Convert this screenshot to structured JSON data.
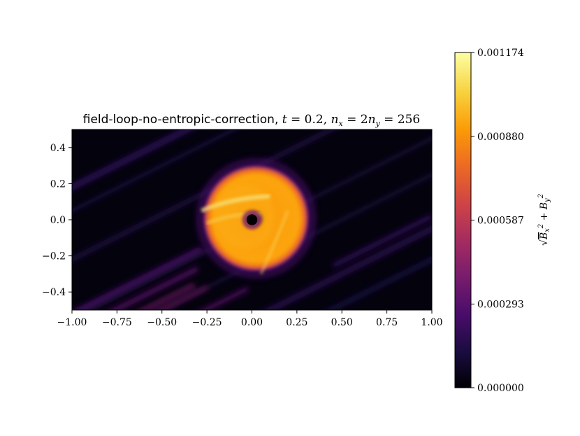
{
  "chart_data": {
    "type": "heatmap",
    "title": "field-loop-no-entropic-correction, t = 0.2, n_x = 2n_y = 256",
    "title_parts": {
      "name": "field-loop-no-entropic-correction,",
      "t_var": "t",
      "t_eq": " = 0.2,",
      "n_var": "n",
      "n_sub": "x",
      "eq_mid": " = 2",
      "n2_var": "n",
      "n2_sub": "y",
      "n_eq": " = 256"
    },
    "xlim": [
      -1.0,
      1.0
    ],
    "ylim": [
      -0.5,
      0.5
    ],
    "x_ticks": [
      -1.0,
      -0.75,
      -0.5,
      -0.25,
      0.0,
      0.25,
      0.5,
      0.75,
      1.0
    ],
    "x_tick_labels": [
      "−1.00",
      "−0.75",
      "−0.50",
      "−0.25",
      "0.00",
      "0.25",
      "0.50",
      "0.75",
      "1.00"
    ],
    "y_ticks": [
      0.4,
      0.2,
      0.0,
      -0.2,
      -0.4
    ],
    "y_tick_labels": [
      "0.4",
      "0.2",
      "0.0",
      "−0.2",
      "−0.4"
    ],
    "colormap": "inferno",
    "colormap_stops": [
      "#000004",
      "#1b0c41",
      "#4a0c6b",
      "#781c6d",
      "#a52c60",
      "#cf4446",
      "#ed6925",
      "#fb9b06",
      "#f7d13d",
      "#fcffa4"
    ],
    "colorbar": {
      "label": "√(B_x² + B_y²)",
      "range": [
        0.0,
        0.001174
      ],
      "ticks": [
        0.001174,
        0.00088,
        0.000587,
        0.000293,
        0.0
      ],
      "tick_labels": [
        "0.001174",
        "0.000880",
        "0.000587",
        "0.000293",
        "0.000000"
      ]
    },
    "features": {
      "loop_center": [
        0.0,
        0.0
      ],
      "loop_radius": 0.3,
      "inner_hole_radius": 0.03,
      "peak_value": 0.001174,
      "stripe_direction_slope": 0.5
    }
  }
}
